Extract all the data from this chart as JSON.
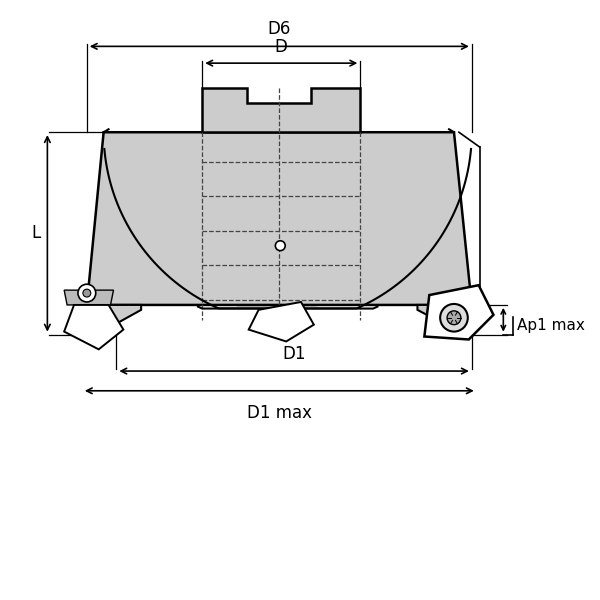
{
  "bg_color": "#ffffff",
  "body_fill": "#cccccc",
  "body_fill2": "#d5d5d5",
  "line_color": "#000000",
  "dash_color": "#444444",
  "labels": {
    "D6": "D6",
    "D": "D",
    "D1": "D1",
    "D1max": "D1 max",
    "L": "L",
    "Ap1max": "Ap1 max"
  },
  "font_size": 12
}
